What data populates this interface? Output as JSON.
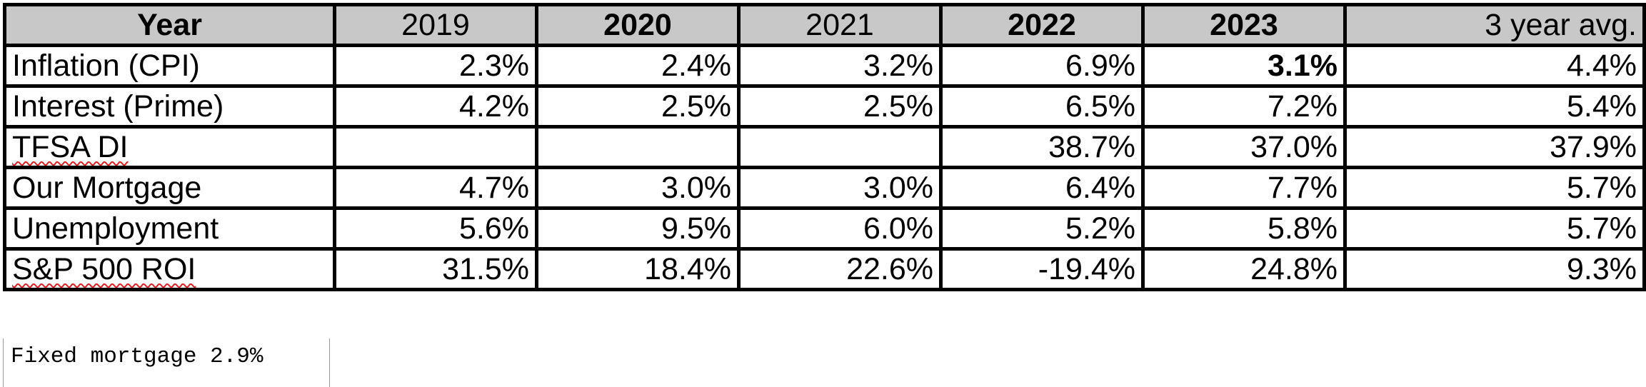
{
  "table": {
    "headers": [
      "Year",
      "2019",
      "2020",
      "2021",
      "2022",
      "2023",
      "3 year avg."
    ],
    "rows": [
      {
        "label": "Inflation (CPI)",
        "values": [
          "2.3%",
          "2.4%",
          "3.2%",
          "6.9%",
          "3.1%",
          "4.4%"
        ]
      },
      {
        "label": "Interest (Prime)",
        "values": [
          "4.2%",
          "2.5%",
          "2.5%",
          "6.5%",
          "7.2%",
          "5.4%"
        ]
      },
      {
        "label": "TFSA DI",
        "values": [
          "",
          "",
          "",
          "38.7%",
          "37.0%",
          "37.9%"
        ]
      },
      {
        "label": "Our Mortgage",
        "values": [
          "4.7%",
          "3.0%",
          "3.0%",
          "6.4%",
          "7.7%",
          "5.7%"
        ]
      },
      {
        "label": "Unemployment",
        "values": [
          "5.6%",
          "9.5%",
          "6.0%",
          "5.2%",
          "5.8%",
          "5.7%"
        ]
      },
      {
        "label": "S&P 500 ROI",
        "values": [
          "31.5%",
          "18.4%",
          "22.6%",
          "-19.4%",
          "24.8%",
          "9.3%"
        ]
      }
    ]
  },
  "note": {
    "text": "Fixed mortgage 2.9%"
  },
  "colors": {
    "header_fill": "#c8c8c8",
    "border": "#000000",
    "spellcheck_underline": "#e02020"
  }
}
